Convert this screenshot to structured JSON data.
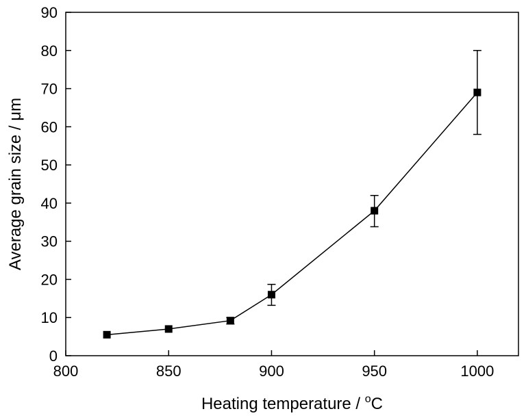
{
  "chart_data": {
    "type": "line",
    "title": "",
    "xlabel": "Heating temperature / ",
    "xlabel_unit_sup": "o",
    "xlabel_unit": "C",
    "ylabel": "Average grain size / μm",
    "xlim": [
      800,
      1020
    ],
    "ylim": [
      0,
      90
    ],
    "xticks": [
      800,
      850,
      900,
      950,
      1000
    ],
    "yticks": [
      0,
      10,
      20,
      30,
      40,
      50,
      60,
      70,
      80,
      90
    ],
    "grid": false,
    "legend": "none",
    "series": [
      {
        "marker": "square",
        "color": "#000000",
        "points": [
          {
            "x": 820,
            "y": 5.5,
            "err_low": null,
            "err_high": null
          },
          {
            "x": 850,
            "y": 7.0,
            "err_low": null,
            "err_high": null
          },
          {
            "x": 880,
            "y": 9.2,
            "err_low": 8.3,
            "err_high": 10.0
          },
          {
            "x": 900,
            "y": 16.0,
            "err_low": 13.2,
            "err_high": 18.7
          },
          {
            "x": 950,
            "y": 38.0,
            "err_low": 33.8,
            "err_high": 42.0
          },
          {
            "x": 1000,
            "y": 69.0,
            "err_low": 58.0,
            "err_high": 80.0
          }
        ]
      }
    ]
  }
}
